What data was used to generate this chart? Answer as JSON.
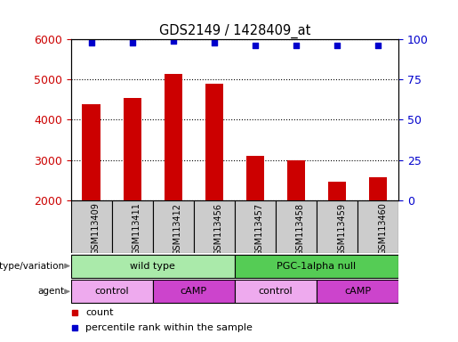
{
  "title": "GDS2149 / 1428409_at",
  "samples": [
    "GSM113409",
    "GSM113411",
    "GSM113412",
    "GSM113456",
    "GSM113457",
    "GSM113458",
    "GSM113459",
    "GSM113460"
  ],
  "counts": [
    4380,
    4530,
    5140,
    4890,
    3100,
    3000,
    2460,
    2570
  ],
  "percentile_ranks": [
    98,
    98,
    99,
    98,
    96,
    96,
    96,
    96
  ],
  "ylim_left": [
    2000,
    6000
  ],
  "ylim_right": [
    0,
    100
  ],
  "yticks_left": [
    2000,
    3000,
    4000,
    5000,
    6000
  ],
  "yticks_right": [
    0,
    25,
    50,
    75,
    100
  ],
  "bar_color": "#cc0000",
  "dot_color": "#0000cc",
  "bar_width": 0.45,
  "genotype_groups": [
    {
      "label": "wild type",
      "start": 0,
      "end": 4,
      "color": "#aaeaaa"
    },
    {
      "label": "PGC-1alpha null",
      "start": 4,
      "end": 8,
      "color": "#55cc55"
    }
  ],
  "agent_groups": [
    {
      "label": "control",
      "start": 0,
      "end": 2,
      "color": "#eeaaee"
    },
    {
      "label": "cAMP",
      "start": 2,
      "end": 4,
      "color": "#cc44cc"
    },
    {
      "label": "control",
      "start": 4,
      "end": 6,
      "color": "#eeaaee"
    },
    {
      "label": "cAMP",
      "start": 6,
      "end": 8,
      "color": "#cc44cc"
    }
  ],
  "legend_items": [
    {
      "label": "count",
      "color": "#cc0000"
    },
    {
      "label": "percentile rank within the sample",
      "color": "#0000cc"
    }
  ],
  "ylabel_left_color": "#cc0000",
  "ylabel_right_color": "#0000cc",
  "tick_label_area_bg": "#cccccc",
  "plot_bg": "#ffffff"
}
